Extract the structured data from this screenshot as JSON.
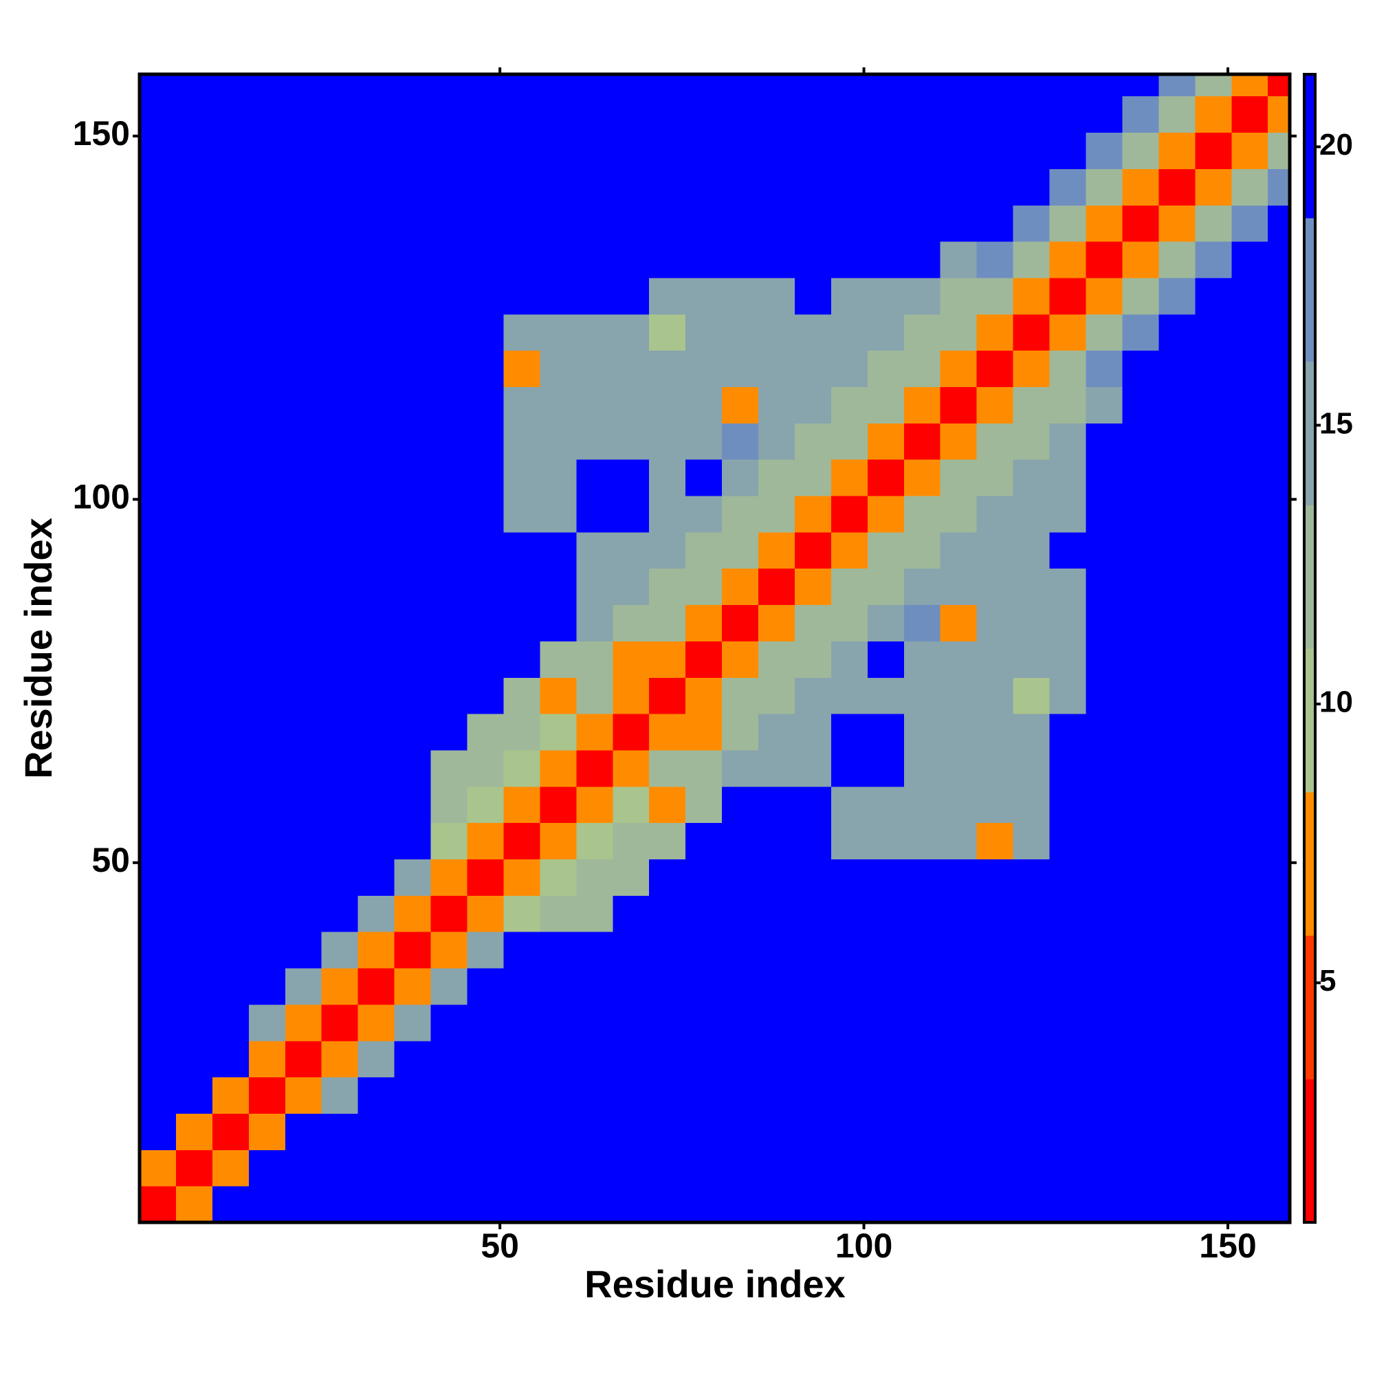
{
  "chart_data": {
    "type": "heatmap",
    "x_label": "Residue index",
    "y_label": "Residue index",
    "xlim": [
      0.5,
      158.5
    ],
    "ylim": [
      0.5,
      158.5
    ],
    "xticks": [
      50,
      100,
      150
    ],
    "yticks": [
      50,
      100,
      150
    ],
    "xbins": [
      0.5,
      5.5,
      10.5,
      15.5,
      20.5,
      25.5,
      30.5,
      35.5,
      40.5,
      45.5,
      50.5,
      55.5,
      60.5,
      65.5,
      70.5,
      75.5,
      80.5,
      85.5,
      90.5,
      95.5,
      100.5,
      105.5,
      110.5,
      115.5,
      120.5,
      125.5,
      130.5,
      135.5,
      140.5,
      145.5,
      150.5,
      155.5,
      158.5
    ],
    "ybins": [
      0.5,
      5.5,
      10.5,
      15.5,
      20.5,
      25.5,
      30.5,
      35.5,
      40.5,
      45.5,
      50.5,
      55.5,
      60.5,
      65.5,
      70.5,
      75.5,
      80.5,
      85.5,
      90.5,
      95.5,
      100.5,
      105.5,
      110.5,
      115.5,
      120.5,
      125.5,
      130.5,
      135.5,
      140.5,
      145.5,
      150.5,
      155.5,
      158.5
    ],
    "clim": [
      0.7,
      21.3
    ],
    "cticks": [
      5,
      10,
      15,
      20
    ],
    "colorscale": [
      "#ff0000",
      "#ff3a00",
      "#ff8c00",
      "#a9c48c",
      "#9fb89a",
      "#88a4ad",
      "#6f8ec0",
      "#0000ff"
    ],
    "z": [
      [
        3,
        7,
        21,
        21,
        21,
        21,
        21,
        21,
        21,
        21,
        21,
        21,
        21,
        21,
        21,
        21,
        21,
        21,
        21,
        21,
        21,
        21,
        21,
        21,
        21,
        21,
        21,
        21,
        21,
        21,
        21,
        21
      ],
      [
        7,
        3,
        7,
        21,
        21,
        21,
        21,
        21,
        21,
        21,
        21,
        21,
        21,
        21,
        21,
        21,
        21,
        21,
        21,
        21,
        21,
        21,
        21,
        21,
        21,
        21,
        21,
        21,
        21,
        21,
        21,
        21
      ],
      [
        21,
        7,
        3,
        7,
        21,
        21,
        21,
        21,
        21,
        21,
        21,
        21,
        21,
        21,
        21,
        21,
        21,
        21,
        21,
        21,
        21,
        21,
        21,
        21,
        21,
        21,
        21,
        21,
        21,
        21,
        21,
        21
      ],
      [
        21,
        21,
        7,
        3,
        7,
        16,
        21,
        21,
        21,
        21,
        21,
        21,
        21,
        21,
        21,
        21,
        21,
        21,
        21,
        21,
        21,
        21,
        21,
        21,
        21,
        21,
        21,
        21,
        21,
        21,
        21,
        21
      ],
      [
        21,
        21,
        21,
        7,
        3,
        7,
        16,
        21,
        21,
        21,
        21,
        21,
        21,
        21,
        21,
        21,
        21,
        21,
        21,
        21,
        21,
        21,
        21,
        21,
        21,
        21,
        21,
        21,
        21,
        21,
        21,
        21
      ],
      [
        21,
        21,
        21,
        16,
        7,
        3,
        7,
        16,
        21,
        21,
        21,
        21,
        21,
        21,
        21,
        21,
        21,
        21,
        21,
        21,
        21,
        21,
        21,
        21,
        21,
        21,
        21,
        21,
        21,
        21,
        21,
        21
      ],
      [
        21,
        21,
        21,
        21,
        16,
        7,
        3,
        7,
        16,
        21,
        21,
        21,
        21,
        21,
        21,
        21,
        21,
        21,
        21,
        21,
        21,
        21,
        21,
        21,
        21,
        21,
        21,
        21,
        21,
        21,
        21,
        21
      ],
      [
        21,
        21,
        21,
        21,
        21,
        16,
        7,
        3,
        7,
        16,
        21,
        21,
        21,
        21,
        21,
        21,
        21,
        21,
        21,
        21,
        21,
        21,
        21,
        21,
        21,
        21,
        21,
        21,
        21,
        21,
        21,
        21
      ],
      [
        21,
        21,
        21,
        21,
        21,
        21,
        16,
        7,
        3,
        7,
        10,
        12,
        13,
        21,
        21,
        21,
        21,
        21,
        21,
        21,
        21,
        21,
        21,
        21,
        21,
        21,
        21,
        21,
        21,
        21,
        21,
        21
      ],
      [
        21,
        21,
        21,
        21,
        21,
        21,
        21,
        16,
        7,
        3,
        7,
        10,
        12,
        13,
        21,
        21,
        21,
        21,
        21,
        21,
        21,
        21,
        21,
        21,
        21,
        21,
        21,
        21,
        21,
        21,
        21,
        21
      ],
      [
        21,
        21,
        21,
        21,
        21,
        21,
        21,
        21,
        10,
        7,
        3,
        7,
        10,
        12,
        13,
        21,
        21,
        21,
        21,
        14,
        14,
        14,
        14,
        8,
        14,
        21,
        21,
        21,
        21,
        21,
        21,
        21
      ],
      [
        21,
        21,
        21,
        21,
        21,
        21,
        21,
        21,
        12,
        10,
        7,
        3,
        7,
        10,
        8,
        13,
        21,
        21,
        21,
        14,
        14,
        14,
        14,
        14,
        14,
        21,
        21,
        21,
        21,
        21,
        21,
        21
      ],
      [
        21,
        21,
        21,
        21,
        21,
        21,
        21,
        21,
        13,
        12,
        10,
        7,
        3,
        7,
        11,
        13,
        14,
        14,
        14,
        21,
        21,
        14,
        14,
        14,
        14,
        21,
        21,
        21,
        21,
        21,
        21,
        21
      ],
      [
        21,
        21,
        21,
        21,
        21,
        21,
        21,
        21,
        21,
        13,
        12,
        10,
        7,
        3,
        7,
        8,
        13,
        14,
        14,
        21,
        21,
        14,
        14,
        14,
        14,
        21,
        21,
        21,
        21,
        21,
        21,
        21
      ],
      [
        21,
        21,
        21,
        21,
        21,
        21,
        21,
        21,
        21,
        21,
        13,
        8,
        11,
        7,
        3,
        7,
        11,
        13,
        14,
        14,
        14,
        14,
        14,
        14,
        10,
        14,
        21,
        21,
        21,
        21,
        21,
        21
      ],
      [
        21,
        21,
        21,
        21,
        21,
        21,
        21,
        21,
        21,
        21,
        21,
        13,
        13,
        8,
        7,
        3,
        7,
        11,
        13,
        14,
        21,
        14,
        14,
        14,
        14,
        14,
        21,
        21,
        21,
        21,
        21,
        21
      ],
      [
        21,
        21,
        21,
        21,
        21,
        21,
        21,
        21,
        21,
        21,
        21,
        21,
        14,
        13,
        11,
        7,
        3,
        7,
        11,
        13,
        14,
        18,
        8,
        14,
        14,
        14,
        21,
        21,
        21,
        21,
        21,
        21
      ],
      [
        21,
        21,
        21,
        21,
        21,
        21,
        21,
        21,
        21,
        21,
        21,
        21,
        14,
        14,
        13,
        11,
        7,
        3,
        7,
        11,
        13,
        14,
        14,
        14,
        14,
        14,
        21,
        21,
        21,
        21,
        21,
        21
      ],
      [
        21,
        21,
        21,
        21,
        21,
        21,
        21,
        21,
        21,
        21,
        21,
        21,
        14,
        14,
        14,
        13,
        11,
        7,
        3,
        7,
        11,
        13,
        14,
        14,
        14,
        21,
        21,
        21,
        21,
        21,
        21,
        21
      ],
      [
        21,
        21,
        21,
        21,
        21,
        21,
        21,
        21,
        21,
        21,
        14,
        14,
        21,
        21,
        14,
        14,
        13,
        11,
        7,
        3,
        7,
        11,
        13,
        14,
        15,
        15,
        21,
        21,
        21,
        21,
        21,
        21
      ],
      [
        21,
        21,
        21,
        21,
        21,
        21,
        21,
        21,
        21,
        21,
        14,
        14,
        21,
        21,
        14,
        21,
        14,
        13,
        11,
        7,
        3,
        7,
        11,
        13,
        14,
        15,
        21,
        21,
        21,
        21,
        21,
        21
      ],
      [
        21,
        21,
        21,
        21,
        21,
        21,
        21,
        21,
        21,
        21,
        14,
        14,
        14,
        14,
        14,
        14,
        18,
        14,
        13,
        11,
        7,
        3,
        7,
        11,
        13,
        14,
        21,
        21,
        21,
        21,
        21,
        21
      ],
      [
        21,
        21,
        21,
        21,
        21,
        21,
        21,
        21,
        21,
        21,
        14,
        14,
        14,
        14,
        14,
        14,
        8,
        14,
        14,
        13,
        11,
        7,
        3,
        7,
        11,
        13,
        14,
        21,
        21,
        21,
        21,
        21
      ],
      [
        21,
        21,
        21,
        21,
        21,
        21,
        21,
        21,
        21,
        21,
        8,
        14,
        14,
        14,
        14,
        14,
        14,
        14,
        14,
        14,
        13,
        11,
        7,
        3,
        7,
        12,
        17,
        21,
        21,
        21,
        21,
        21
      ],
      [
        21,
        21,
        21,
        21,
        21,
        21,
        21,
        21,
        21,
        21,
        14,
        14,
        14,
        14,
        10,
        14,
        14,
        14,
        14,
        15,
        14,
        13,
        11,
        7,
        3,
        7,
        12,
        17,
        21,
        21,
        21,
        21
      ],
      [
        21,
        21,
        21,
        21,
        21,
        21,
        21,
        21,
        21,
        21,
        21,
        21,
        21,
        21,
        14,
        14,
        14,
        14,
        21,
        15,
        15,
        14,
        13,
        12,
        7,
        3,
        7,
        12,
        17,
        21,
        21,
        21
      ],
      [
        21,
        21,
        21,
        21,
        21,
        21,
        21,
        21,
        21,
        21,
        21,
        21,
        21,
        21,
        21,
        21,
        21,
        21,
        21,
        21,
        21,
        21,
        14,
        17,
        12,
        7,
        3,
        7,
        12,
        17,
        21,
        21
      ],
      [
        21,
        21,
        21,
        21,
        21,
        21,
        21,
        21,
        21,
        21,
        21,
        21,
        21,
        21,
        21,
        21,
        21,
        21,
        21,
        21,
        21,
        21,
        21,
        21,
        17,
        12,
        7,
        3,
        7,
        12,
        17,
        21
      ],
      [
        21,
        21,
        21,
        21,
        21,
        21,
        21,
        21,
        21,
        21,
        21,
        21,
        21,
        21,
        21,
        21,
        21,
        21,
        21,
        21,
        21,
        21,
        21,
        21,
        21,
        17,
        12,
        7,
        3,
        7,
        12,
        17
      ],
      [
        21,
        21,
        21,
        21,
        21,
        21,
        21,
        21,
        21,
        21,
        21,
        21,
        21,
        21,
        21,
        21,
        21,
        21,
        21,
        21,
        21,
        21,
        21,
        21,
        21,
        21,
        17,
        12,
        7,
        3,
        7,
        12
      ],
      [
        21,
        21,
        21,
        21,
        21,
        21,
        21,
        21,
        21,
        21,
        21,
        21,
        21,
        21,
        21,
        21,
        21,
        21,
        21,
        21,
        21,
        21,
        21,
        21,
        21,
        21,
        21,
        17,
        12,
        7,
        3,
        7
      ],
      [
        21,
        21,
        21,
        21,
        21,
        21,
        21,
        21,
        21,
        21,
        21,
        21,
        21,
        21,
        21,
        21,
        21,
        21,
        21,
        21,
        21,
        21,
        21,
        21,
        21,
        21,
        21,
        21,
        17,
        12,
        7,
        3
      ]
    ]
  }
}
